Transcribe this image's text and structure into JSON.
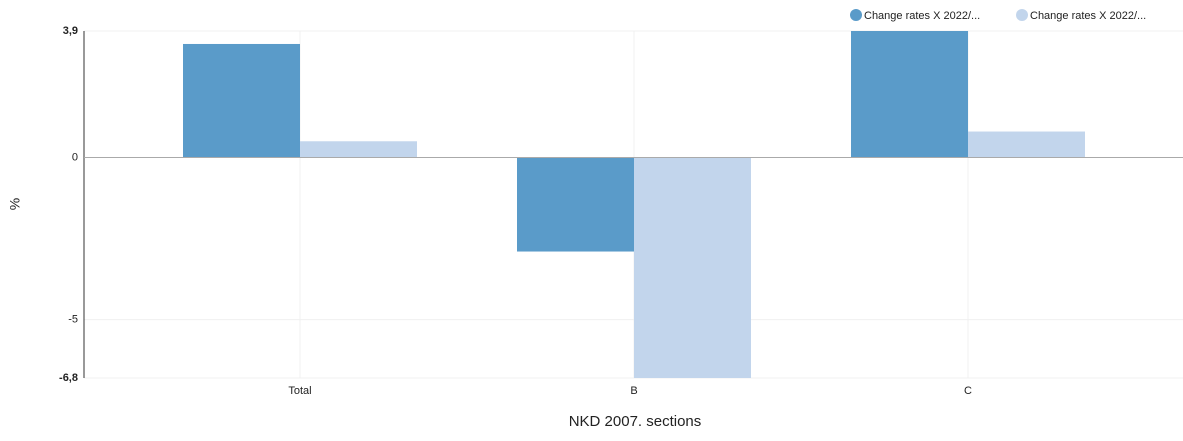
{
  "chart_data": {
    "type": "bar",
    "x_label": "NKD 2007. sections",
    "y_label": "%",
    "categories": [
      "Total",
      "B",
      "C"
    ],
    "series": [
      {
        "name": "Change rates X 2022/...",
        "color": "#5a9bc9",
        "values": [
          3.5,
          -2.9,
          3.9
        ]
      },
      {
        "name": "Change rates X 2022/...",
        "color": "#c2d5ec",
        "values": [
          0.5,
          -6.8,
          0.8
        ]
      }
    ],
    "ylim": [
      -6.8,
      3.9
    ],
    "yticks": [
      {
        "value": -6.8,
        "label": "-6,8"
      },
      -5,
      0,
      {
        "value": 3.9,
        "label": "3,9"
      }
    ],
    "grid": true,
    "legend": "top-right"
  }
}
